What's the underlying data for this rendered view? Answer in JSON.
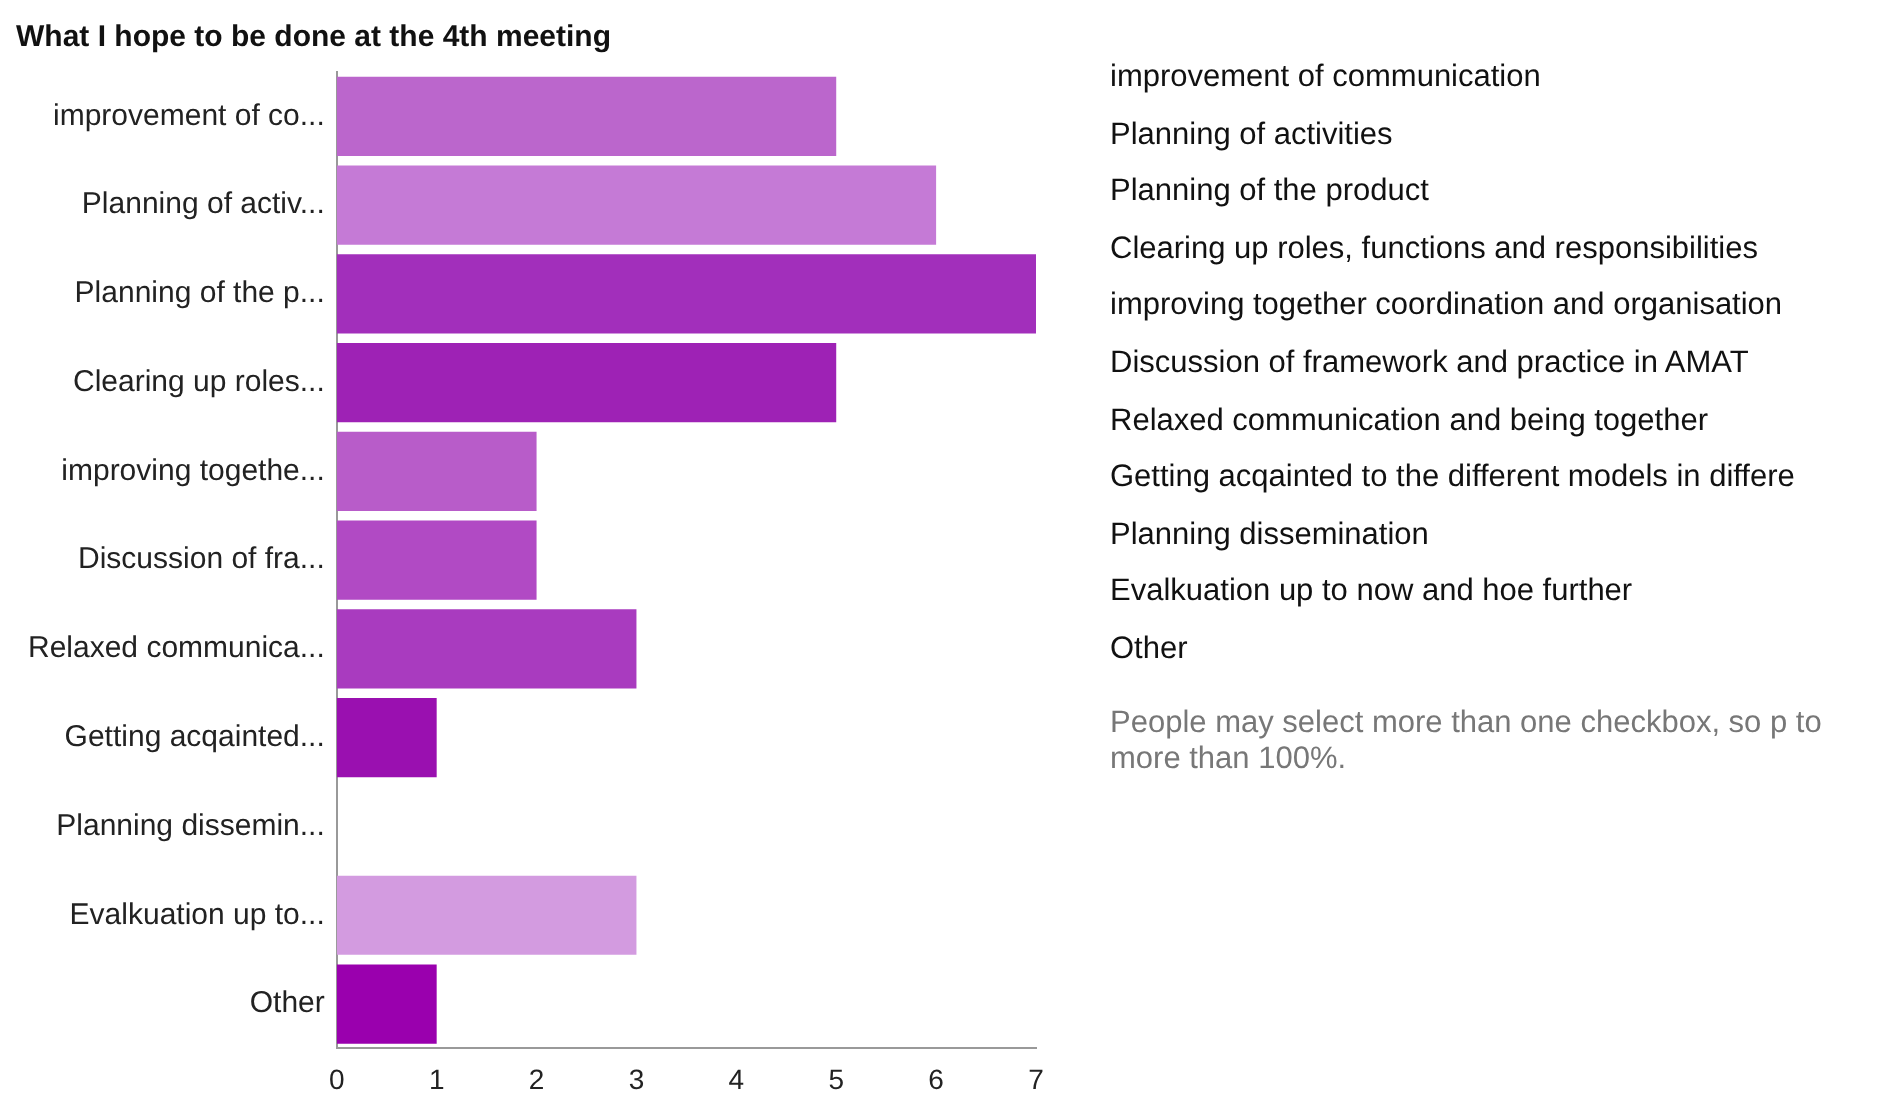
{
  "chart_data": {
    "type": "bar",
    "orientation": "horizontal",
    "title": "What I hope to be done at the 4th meeting",
    "categories": [
      "improvement of co...",
      "Planning of activ...",
      "Planning of the p...",
      "Clearing up roles...",
      "improving togethe...",
      "Discussion of fra...",
      "Relaxed communica...",
      "Getting acqainted...",
      "Planning dissemin...",
      "Evalkuation up to...",
      "Other"
    ],
    "values": [
      5,
      6,
      7,
      5,
      2,
      2,
      3,
      1,
      0,
      3,
      1
    ],
    "colors": [
      "#bb66cc",
      "#c57ad6",
      "#a22fbb",
      "#9e22b5",
      "#b85cc9",
      "#b14ac4",
      "#a93bbf",
      "#9a10b0",
      "#a040c0",
      "#d39be0",
      "#9a00ae"
    ],
    "xlim": [
      0,
      7
    ],
    "xticks": [
      0,
      1,
      2,
      3,
      4,
      5,
      6,
      7
    ],
    "grid": false,
    "legend": false,
    "annotations": [
      "improvement of communication",
      "Planning of activities",
      "Planning of the product",
      "Clearing up roles, functions and responsibilities",
      "improving together coordination and organisation",
      "Discussion of framework and practice in AMAT",
      "Relaxed communication and being together",
      "Getting acqainted to the different models in differe",
      "Planning dissemination",
      "Evalkuation up to now and hoe further",
      "Other",
      "People may select more than one checkbox, so p to more than 100%."
    ]
  }
}
